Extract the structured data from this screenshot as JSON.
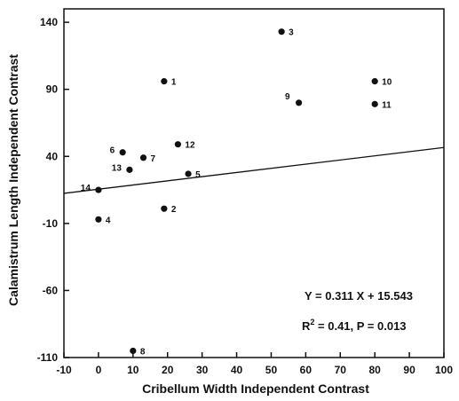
{
  "chart_data": {
    "type": "scatter",
    "title": "",
    "xlabel": "Cribellum Width Independent Contrast",
    "ylabel": "Calamistrum Length Independent Contrast",
    "xlim": [
      -10,
      100
    ],
    "ylim": [
      -110,
      150
    ],
    "x_ticks": [
      -10,
      0,
      10,
      20,
      30,
      40,
      50,
      60,
      70,
      80,
      90,
      100
    ],
    "y_ticks": [
      -110,
      -60,
      -10,
      40,
      90,
      140
    ],
    "grid": false,
    "points": [
      {
        "label": "1",
        "x": 19,
        "y": 96
      },
      {
        "label": "2",
        "x": 19,
        "y": 1
      },
      {
        "label": "3",
        "x": 53,
        "y": 133
      },
      {
        "label": "4",
        "x": 0,
        "y": -7
      },
      {
        "label": "5",
        "x": 26,
        "y": 27
      },
      {
        "label": "6",
        "x": 7,
        "y": 43
      },
      {
        "label": "7",
        "x": 13,
        "y": 39
      },
      {
        "label": "8",
        "x": 10,
        "y": -105
      },
      {
        "label": "9",
        "x": 58,
        "y": 80
      },
      {
        "label": "10",
        "x": 80,
        "y": 96
      },
      {
        "label": "11",
        "x": 80,
        "y": 79
      },
      {
        "label": "12",
        "x": 23,
        "y": 49
      },
      {
        "label": "13",
        "x": 9,
        "y": 30
      },
      {
        "label": "14",
        "x": 0,
        "y": 15
      }
    ],
    "regression": {
      "slope": 0.311,
      "intercept": 15.543,
      "x_range": [
        -10,
        100
      ],
      "equation_label": "Y = 0.311 X + 15.543",
      "r2_prefix": "R",
      "r2_superscript": "2",
      "r2_suffix": " = 0.41,  P = 0.013"
    }
  }
}
